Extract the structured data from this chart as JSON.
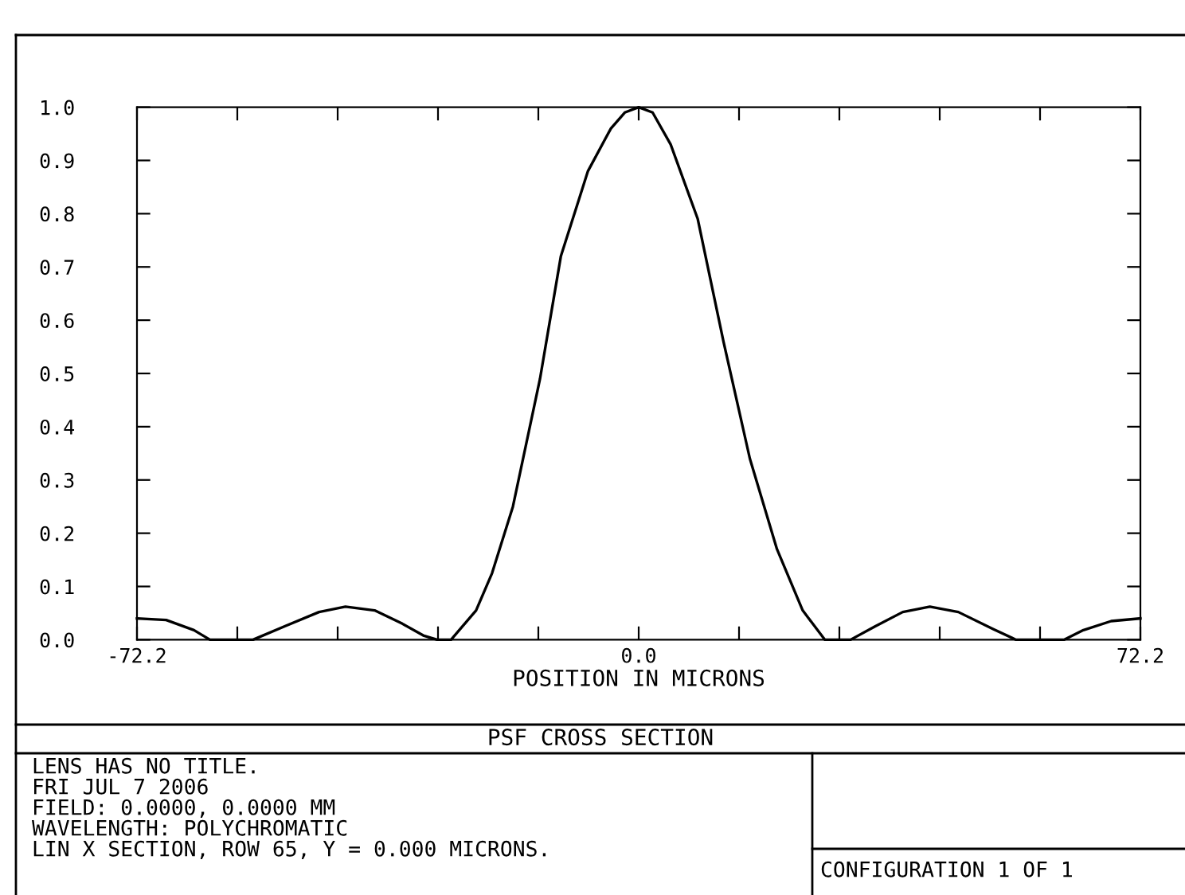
{
  "chart_data": {
    "type": "line",
    "title": "PSF CROSS SECTION",
    "xlabel": "POSITION IN MICRONS",
    "x": [
      -72.2,
      -68,
      -64,
      -61.7,
      -58.5,
      -55.5,
      -51,
      -46,
      -42.2,
      -38,
      -34,
      -31,
      -29,
      -27,
      -23.4,
      -21.1,
      -18.1,
      -14.2,
      -11.2,
      -7.3,
      -4,
      -2,
      0,
      2,
      4.6,
      8.5,
      12.2,
      16,
      19.9,
      23.6,
      26.8,
      28.6,
      30.5,
      34,
      38,
      41.9,
      46,
      51,
      54.3,
      57.8,
      61.2,
      64,
      68,
      72.2
    ],
    "values": [
      0.04,
      0.037,
      0.018,
      0.0,
      0.0,
      0.0,
      0.025,
      0.052,
      0.062,
      0.055,
      0.03,
      0.008,
      0.0,
      0.0,
      0.055,
      0.125,
      0.25,
      0.49,
      0.72,
      0.88,
      0.96,
      0.99,
      1.0,
      0.99,
      0.93,
      0.79,
      0.56,
      0.34,
      0.17,
      0.055,
      0.0,
      0.0,
      0.0,
      0.025,
      0.052,
      0.062,
      0.052,
      0.02,
      0.0,
      0.0,
      0.0,
      0.018,
      0.035,
      0.04
    ],
    "color": "#000000",
    "line_style": "solid",
    "marker": "none",
    "grid": false,
    "legend": false,
    "xlim": [
      -72.2,
      72.2
    ],
    "xticks": [
      {
        "value": -72.2,
        "label": "-72.2"
      },
      {
        "value": -57.76,
        "label": null
      },
      {
        "value": -43.32,
        "label": null
      },
      {
        "value": -28.88,
        "label": null
      },
      {
        "value": -14.44,
        "label": null
      },
      {
        "value": 0,
        "label": "0.0"
      },
      {
        "value": 14.44,
        "label": null
      },
      {
        "value": 28.88,
        "label": null
      },
      {
        "value": 43.32,
        "label": null
      },
      {
        "value": 57.76,
        "label": null
      },
      {
        "value": 72.2,
        "label": "72.2"
      }
    ],
    "ylim": [
      0,
      1
    ],
    "yticks": [
      {
        "value": 0,
        "label": "0.0"
      },
      {
        "value": 0.1,
        "label": "0.1"
      },
      {
        "value": 0.2,
        "label": "0.2"
      },
      {
        "value": 0.3,
        "label": "0.3"
      },
      {
        "value": 0.4,
        "label": "0.4"
      },
      {
        "value": 0.5,
        "label": "0.5"
      },
      {
        "value": 0.6,
        "label": "0.6"
      },
      {
        "value": 0.7,
        "label": "0.7"
      },
      {
        "value": 0.8,
        "label": "0.8"
      },
      {
        "value": 0.9,
        "label": "0.9"
      },
      {
        "value": 1.0,
        "label": "1.0"
      }
    ],
    "annotations": [
      "LENS HAS NO TITLE.",
      "FRI JUL 7 2006",
      "FIELD: 0.0000, 0.0000 MM",
      "WAVELENGTH: POLYCHROMATIC",
      "LIN X SECTION, ROW 65, Y = 0.000 MICRONS.",
      "CONFIGURATION 1 OF 1"
    ]
  }
}
